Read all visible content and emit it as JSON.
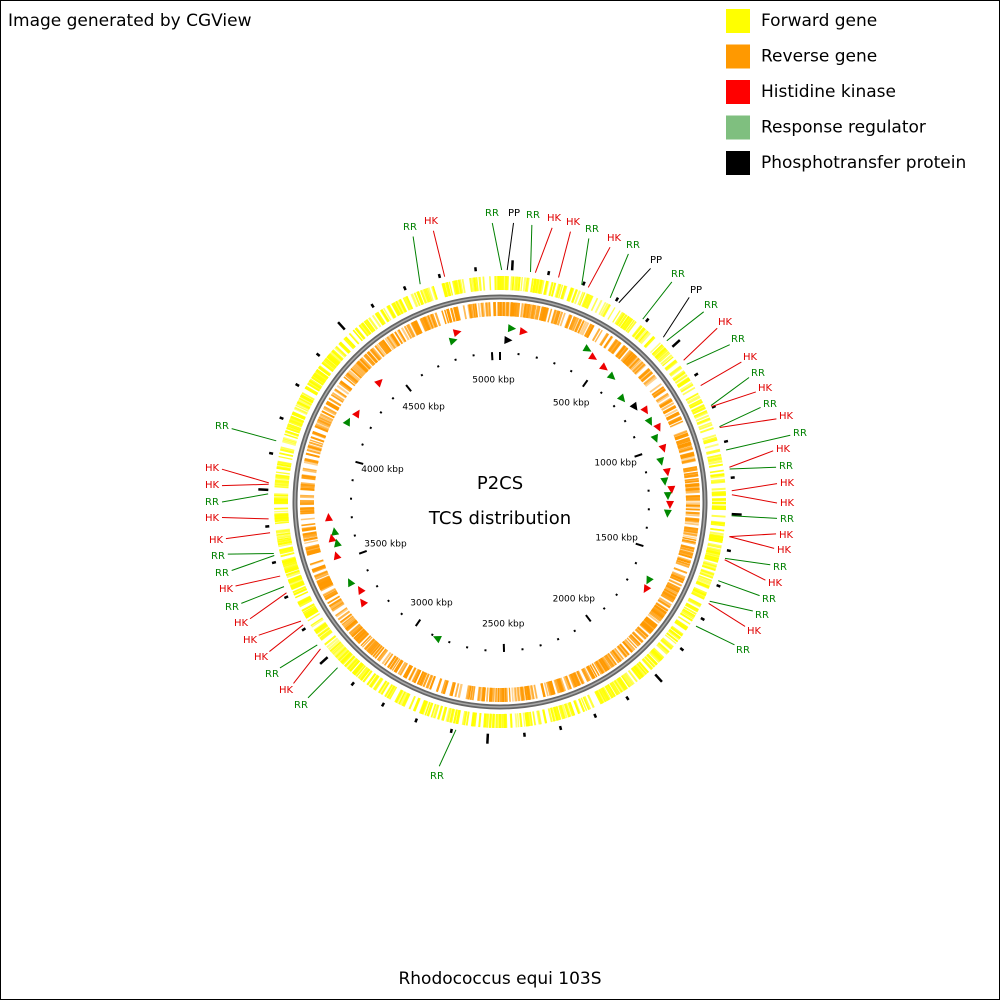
{
  "header": {
    "caption": "Image generated by CGView"
  },
  "legend": [
    {
      "label": "Forward gene",
      "color": "#ffff00"
    },
    {
      "label": "Reverse gene",
      "color": "#ff9900"
    },
    {
      "label": "Histidine kinase",
      "color": "#ff0000"
    },
    {
      "label": "Response regulator",
      "color": "#7fbf7f"
    },
    {
      "label": "Phosphotransfer protein",
      "color": "#000000"
    }
  ],
  "map": {
    "title": "P2CS",
    "subtitle": "TCS distribution",
    "scale_labels": [
      "500 kbp",
      "1000 kbp",
      "1500 kbp",
      "2000 kbp",
      "2500 kbp",
      "3000 kbp",
      "3500 kbp",
      "4000 kbp",
      "4500 kbp",
      "5000 kbp"
    ],
    "feature_labels": [
      {
        "text": "RR",
        "color": "#008000"
      },
      {
        "text": "HK",
        "color": "#e00000"
      },
      {
        "text": "RR",
        "color": "#008000"
      },
      {
        "text": "PP",
        "color": "#000000"
      },
      {
        "text": "RR",
        "color": "#008000"
      },
      {
        "text": "HK",
        "color": "#e00000"
      },
      {
        "text": "HK",
        "color": "#e00000"
      },
      {
        "text": "RR",
        "color": "#008000"
      },
      {
        "text": "HK",
        "color": "#e00000"
      },
      {
        "text": "RR",
        "color": "#008000"
      },
      {
        "text": "PP",
        "color": "#000000"
      },
      {
        "text": "RR",
        "color": "#008000"
      },
      {
        "text": "PP",
        "color": "#000000"
      },
      {
        "text": "RR",
        "color": "#008000"
      },
      {
        "text": "HK",
        "color": "#e00000"
      },
      {
        "text": "RR",
        "color": "#008000"
      },
      {
        "text": "HK",
        "color": "#e00000"
      },
      {
        "text": "RR",
        "color": "#008000"
      },
      {
        "text": "HK",
        "color": "#e00000"
      },
      {
        "text": "RR",
        "color": "#008000"
      },
      {
        "text": "HK",
        "color": "#e00000"
      },
      {
        "text": "RR",
        "color": "#008000"
      },
      {
        "text": "HK",
        "color": "#e00000"
      },
      {
        "text": "RR",
        "color": "#008000"
      },
      {
        "text": "HK",
        "color": "#e00000"
      },
      {
        "text": "HK",
        "color": "#e00000"
      },
      {
        "text": "RR",
        "color": "#008000"
      },
      {
        "text": "HK",
        "color": "#e00000"
      },
      {
        "text": "HK",
        "color": "#e00000"
      },
      {
        "text": "RR",
        "color": "#008000"
      },
      {
        "text": "HK",
        "color": "#e00000"
      },
      {
        "text": "RR",
        "color": "#008000"
      },
      {
        "text": "RR",
        "color": "#008000"
      },
      {
        "text": "HK",
        "color": "#e00000"
      },
      {
        "text": "RR",
        "color": "#008000"
      },
      {
        "text": "RR",
        "color": "#008000"
      },
      {
        "text": "RR",
        "color": "#008000"
      },
      {
        "text": "HK",
        "color": "#e00000"
      },
      {
        "text": "RR",
        "color": "#008000"
      },
      {
        "text": "HK",
        "color": "#e00000"
      },
      {
        "text": "HK",
        "color": "#e00000"
      },
      {
        "text": "RR",
        "color": "#008000"
      },
      {
        "text": "HK",
        "color": "#e00000"
      },
      {
        "text": "HK",
        "color": "#e00000"
      },
      {
        "text": "RR",
        "color": "#008000"
      },
      {
        "text": "RR",
        "color": "#008000"
      },
      {
        "text": "HK",
        "color": "#e00000"
      },
      {
        "text": "RR",
        "color": "#008000"
      },
      {
        "text": "HK",
        "color": "#e00000"
      },
      {
        "text": "HK",
        "color": "#e00000"
      },
      {
        "text": "HK",
        "color": "#e00000"
      },
      {
        "text": "RR",
        "color": "#008000"
      }
    ]
  },
  "footer": {
    "organism": "Rhodococcus equi 103S"
  }
}
